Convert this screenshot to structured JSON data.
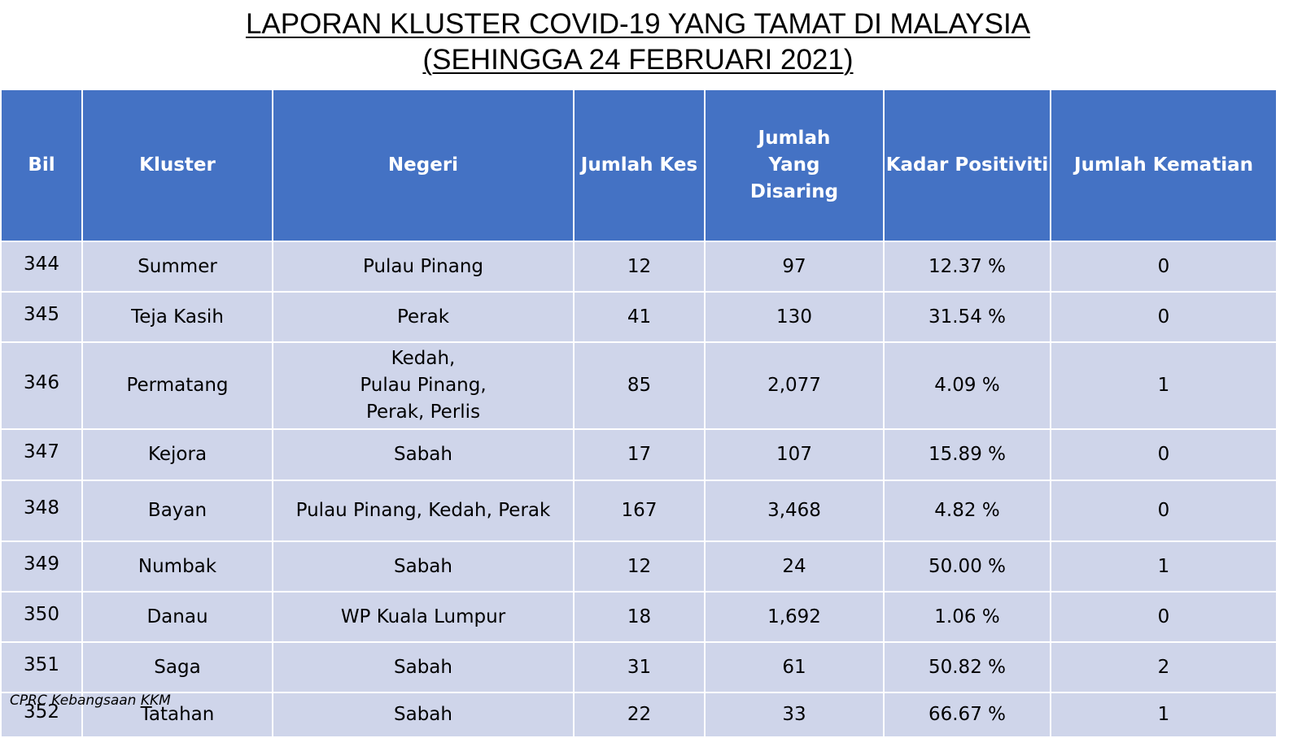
{
  "title": {
    "line1": "LAPORAN KLUSTER COVID-19 YANG TAMAT DI MALAYSIA",
    "line2": "(SEHINGGA 24 FEBRUARI 2021)"
  },
  "table": {
    "headers": [
      "Bil",
      "Kluster",
      "Negeri",
      "Jumlah Kes",
      "Jumlah Yang Disaring",
      "Kadar Positiviti",
      "Jumlah Kematian"
    ],
    "rows": [
      {
        "bil": "344",
        "kluster": "Summer",
        "negeri": [
          "Pulau Pinang"
        ],
        "kes": "12",
        "disaring": "97",
        "positiviti": "12.37 %",
        "kematian": "0"
      },
      {
        "bil": "345",
        "kluster": "Teja Kasih",
        "negeri": [
          "Perak"
        ],
        "kes": "41",
        "disaring": "130",
        "positiviti": "31.54 %",
        "kematian": "0"
      },
      {
        "bil": "346",
        "kluster": "Permatang",
        "negeri": [
          "Kedah,",
          "Pulau Pinang,",
          "Perak, Perlis"
        ],
        "kes": "85",
        "disaring": "2,077",
        "positiviti": "4.09 %",
        "kematian": "1"
      },
      {
        "bil": "347",
        "kluster": "Kejora",
        "negeri": [
          "Sabah"
        ],
        "kes": "17",
        "disaring": "107",
        "positiviti": "15.89 %",
        "kematian": "0"
      },
      {
        "bil": "348",
        "kluster": "Bayan",
        "negeri": [
          "Pulau Pinang, Kedah, Perak"
        ],
        "kes": "167",
        "disaring": "3,468",
        "positiviti": "4.82 %",
        "kematian": "0"
      },
      {
        "bil": "349",
        "kluster": "Numbak",
        "negeri": [
          "Sabah"
        ],
        "kes": "12",
        "disaring": "24",
        "positiviti": "50.00 %",
        "kematian": "1"
      },
      {
        "bil": "350",
        "kluster": "Danau",
        "negeri": [
          "WP Kuala Lumpur"
        ],
        "kes": "18",
        "disaring": "1,692",
        "positiviti": "1.06 %",
        "kematian": "0"
      },
      {
        "bil": "351",
        "kluster": "Saga",
        "negeri": [
          "Sabah"
        ],
        "kes": "31",
        "disaring": "61",
        "positiviti": "50.82 %",
        "kematian": "2"
      },
      {
        "bil": "352",
        "kluster": "Tatahan",
        "negeri": [
          "Sabah"
        ],
        "kes": "22",
        "disaring": "33",
        "positiviti": "66.67 %",
        "kematian": "1"
      }
    ]
  },
  "footer": "CPRC Kebangsaan KKM",
  "colors": {
    "header_bg": "#4472c4",
    "row_bg": "#cfd5ea",
    "header_text": "#ffffff"
  }
}
